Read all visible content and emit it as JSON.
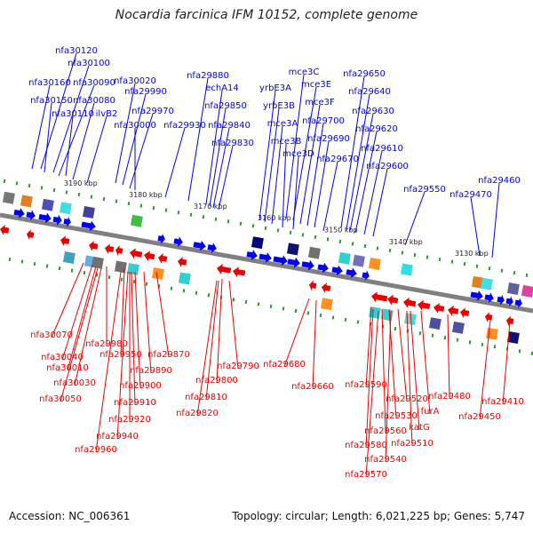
{
  "title": "Nocardia farcinica IFM 10152, complete genome",
  "footer": {
    "accession": "Accession: NC_006361",
    "summary": "Topology: circular; Length: 6,021,225 bp; Genes: 5,747"
  },
  "colors": {
    "forward": "#0000ee",
    "reverse": "#ee0000",
    "axis": "#808080",
    "tick": "#2a9a2a"
  },
  "kbp_marks": [
    "3190 kbp",
    "3180 kbp",
    "3170 kbp",
    "3160 kbp",
    "3150 kbp",
    "3140 kbp",
    "3130 kbp"
  ],
  "top_labels": [
    "nfa30120",
    "nfa30100",
    "nfa30160",
    "nfa30090",
    "nfa30150",
    "nfa30080",
    "nfa30110",
    "ilvB2",
    "nfa30020",
    "nfa29990",
    "nfa29970",
    "nfa30000",
    "nfa29930",
    "nfa29880",
    "echA14",
    "nfa29850",
    "nfa29840",
    "nfa29830",
    "mce3C",
    "yrbE3A",
    "mce3E",
    "yrbE3B",
    "mce3F",
    "mce3A",
    "nfa29700",
    "mce3B",
    "nfa29690",
    "mce3D",
    "nfa29670",
    "nfa29650",
    "nfa29640",
    "nfa29630",
    "nfa29620",
    "nfa29610",
    "nfa29600",
    "nfa29550",
    "nfa29470",
    "nfa29460"
  ],
  "bottom_labels": [
    "nfa30070",
    "nfa29980",
    "nfa30040",
    "nfa29950",
    "nfa29870",
    "nfa30010",
    "nfa29890",
    "nfa30030",
    "nfa29900",
    "nfa30050",
    "nfa29910",
    "nfa29920",
    "nfa29940",
    "nfa29960",
    "nfa29800",
    "nfa29790",
    "nfa29810",
    "nfa29820",
    "nfa29680",
    "nfa29660",
    "nfa29590",
    "nfa29520",
    "nfa29480",
    "furA",
    "nfa29530",
    "katG",
    "nfa29560",
    "nfa29510",
    "nfa29580",
    "nfa29540",
    "nfa29570",
    "nfa29410",
    "nfa29450"
  ]
}
